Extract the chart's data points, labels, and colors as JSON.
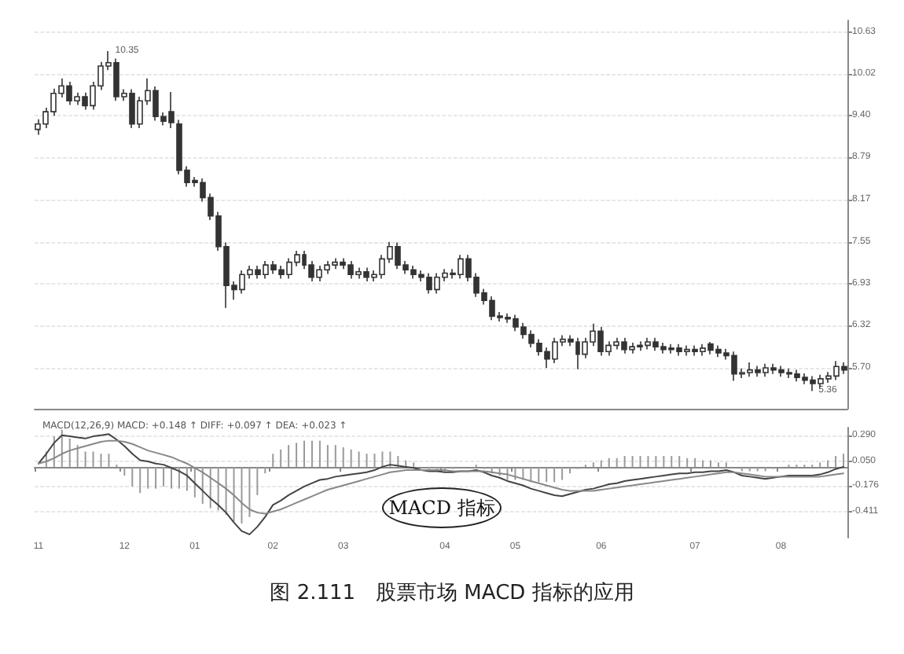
{
  "chart_data": [
    {
      "type": "candlestick",
      "color": "#333333",
      "categories": [
        "11",
        null,
        null,
        null,
        null,
        null,
        null,
        null,
        null,
        null,
        null,
        "12",
        null,
        null,
        null,
        null,
        null,
        null,
        null,
        null,
        "01",
        null,
        null,
        null,
        null,
        null,
        null,
        null,
        null,
        null,
        "02",
        null,
        null,
        null,
        null,
        null,
        null,
        null,
        null,
        "03",
        null,
        null,
        null,
        null,
        null,
        null,
        null,
        null,
        null,
        null,
        null,
        null,
        "04",
        null,
        null,
        null,
        null,
        null,
        null,
        null,
        null,
        "05",
        null,
        null,
        null,
        null,
        null,
        null,
        null,
        null,
        null,
        null,
        "06",
        null,
        null,
        null,
        null,
        null,
        null,
        null,
        null,
        null,
        null,
        null,
        "07",
        null,
        null,
        null,
        null,
        null,
        null,
        null,
        null,
        null,
        null,
        "08",
        null,
        null,
        null,
        null,
        null,
        null,
        null,
        null
      ],
      "ohlc": [
        [
          9.2,
          9.35,
          9.12,
          9.28
        ],
        [
          9.28,
          9.52,
          9.22,
          9.46
        ],
        [
          9.46,
          9.8,
          9.4,
          9.73
        ],
        [
          9.73,
          9.95,
          9.67,
          9.84
        ],
        [
          9.84,
          9.9,
          9.56,
          9.62
        ],
        [
          9.62,
          9.74,
          9.56,
          9.68
        ],
        [
          9.68,
          9.74,
          9.49,
          9.55
        ],
        [
          9.55,
          9.9,
          9.49,
          9.84
        ],
        [
          9.84,
          10.19,
          9.78,
          10.13
        ],
        [
          10.13,
          10.35,
          10.07,
          10.18
        ],
        [
          10.18,
          10.24,
          9.62,
          9.68
        ],
        [
          9.68,
          9.79,
          9.62,
          9.73
        ],
        [
          9.73,
          9.79,
          9.22,
          9.28
        ],
        [
          9.28,
          9.68,
          9.22,
          9.62
        ],
        [
          9.62,
          9.95,
          9.56,
          9.77
        ],
        [
          9.77,
          9.83,
          9.33,
          9.39
        ],
        [
          9.39,
          9.45,
          9.26,
          9.32
        ],
        [
          9.46,
          9.75,
          9.22,
          9.3
        ],
        [
          9.28,
          9.34,
          8.54,
          8.6
        ],
        [
          8.6,
          8.66,
          8.36,
          8.42
        ],
        [
          8.45,
          8.5,
          8.36,
          8.42
        ],
        [
          8.42,
          8.48,
          8.14,
          8.2
        ],
        [
          8.2,
          8.26,
          7.87,
          7.93
        ],
        [
          7.93,
          7.99,
          7.42,
          7.48
        ],
        [
          7.48,
          7.54,
          6.58,
          6.91
        ],
        [
          6.91,
          6.97,
          6.7,
          6.85
        ],
        [
          6.85,
          7.13,
          6.79,
          7.07
        ],
        [
          7.07,
          7.2,
          7.01,
          7.14
        ],
        [
          7.14,
          7.2,
          7.01,
          7.07
        ],
        [
          7.07,
          7.27,
          7.01,
          7.21
        ],
        [
          7.21,
          7.27,
          7.08,
          7.14
        ],
        [
          7.14,
          7.2,
          7.01,
          7.07
        ],
        [
          7.07,
          7.31,
          7.01,
          7.25
        ],
        [
          7.25,
          7.42,
          7.19,
          7.36
        ],
        [
          7.36,
          7.42,
          7.15,
          7.21
        ],
        [
          7.21,
          7.27,
          6.97,
          7.03
        ],
        [
          7.03,
          7.2,
          6.97,
          7.14
        ],
        [
          7.14,
          7.27,
          7.08,
          7.21
        ],
        [
          7.21,
          7.31,
          7.15,
          7.25
        ],
        [
          7.25,
          7.31,
          7.15,
          7.21
        ],
        [
          7.21,
          7.27,
          7.01,
          7.07
        ],
        [
          7.07,
          7.17,
          7.01,
          7.11
        ],
        [
          7.11,
          7.17,
          6.97,
          7.03
        ],
        [
          7.03,
          7.13,
          6.97,
          7.07
        ],
        [
          7.07,
          7.36,
          7.01,
          7.3
        ],
        [
          7.3,
          7.55,
          7.24,
          7.48
        ],
        [
          7.48,
          7.54,
          7.15,
          7.21
        ],
        [
          7.21,
          7.27,
          7.08,
          7.14
        ],
        [
          7.14,
          7.2,
          7.01,
          7.07
        ],
        [
          7.07,
          7.13,
          6.97,
          7.03
        ],
        [
          7.03,
          7.09,
          6.79,
          6.85
        ],
        [
          6.85,
          7.09,
          6.79,
          7.03
        ],
        [
          7.03,
          7.15,
          6.97,
          7.09
        ],
        [
          7.09,
          7.15,
          7.01,
          7.07
        ],
        [
          7.07,
          7.36,
          7.01,
          7.3
        ],
        [
          7.3,
          7.36,
          6.97,
          7.03
        ],
        [
          7.03,
          7.09,
          6.74,
          6.8
        ],
        [
          6.8,
          6.86,
          6.63,
          6.69
        ],
        [
          6.69,
          6.75,
          6.4,
          6.46
        ],
        [
          6.46,
          6.52,
          6.38,
          6.44
        ],
        [
          6.44,
          6.5,
          6.36,
          6.42
        ],
        [
          6.42,
          6.48,
          6.24,
          6.3
        ],
        [
          6.3,
          6.36,
          6.13,
          6.19
        ],
        [
          6.19,
          6.25,
          6.0,
          6.06
        ],
        [
          6.06,
          6.12,
          5.88,
          5.94
        ],
        [
          5.94,
          6.0,
          5.7,
          5.83
        ],
        [
          5.83,
          6.14,
          5.77,
          6.08
        ],
        [
          6.08,
          6.18,
          6.02,
          6.12
        ],
        [
          6.12,
          6.18,
          6.02,
          6.08
        ],
        [
          6.08,
          6.14,
          5.68,
          5.9
        ],
        [
          5.9,
          6.14,
          5.84,
          6.08
        ],
        [
          6.08,
          6.35,
          6.02,
          6.24
        ],
        [
          6.24,
          6.3,
          5.88,
          5.94
        ],
        [
          5.94,
          6.09,
          5.88,
          6.03
        ],
        [
          6.03,
          6.14,
          5.97,
          6.08
        ],
        [
          6.08,
          6.14,
          5.91,
          5.97
        ],
        [
          5.97,
          6.07,
          5.91,
          6.01
        ],
        [
          6.01,
          6.09,
          5.95,
          6.03
        ],
        [
          6.03,
          6.14,
          5.97,
          6.08
        ],
        [
          6.08,
          6.14,
          5.95,
          6.01
        ],
        [
          6.01,
          6.07,
          5.91,
          5.97
        ],
        [
          5.97,
          6.05,
          5.91,
          5.99
        ],
        [
          5.99,
          6.05,
          5.88,
          5.94
        ],
        [
          5.94,
          6.03,
          5.88,
          5.97
        ],
        [
          5.97,
          6.03,
          5.88,
          5.94
        ],
        [
          5.94,
          6.05,
          5.88,
          5.99
        ],
        [
          6.05,
          6.08,
          5.9,
          5.96
        ],
        [
          5.97,
          6.03,
          5.86,
          5.92
        ],
        [
          5.92,
          5.98,
          5.82,
          5.88
        ],
        [
          5.88,
          5.94,
          5.51,
          5.61
        ],
        [
          5.61,
          5.69,
          5.55,
          5.63
        ],
        [
          5.63,
          5.78,
          5.57,
          5.67
        ],
        [
          5.67,
          5.73,
          5.57,
          5.63
        ],
        [
          5.63,
          5.76,
          5.57,
          5.7
        ],
        [
          5.7,
          5.76,
          5.61,
          5.67
        ],
        [
          5.67,
          5.73,
          5.57,
          5.63
        ],
        [
          5.63,
          5.69,
          5.55,
          5.61
        ],
        [
          5.61,
          5.67,
          5.5,
          5.56
        ],
        [
          5.56,
          5.62,
          5.46,
          5.52
        ],
        [
          5.52,
          5.58,
          5.36,
          5.47
        ],
        [
          5.47,
          5.6,
          5.41,
          5.54
        ],
        [
          5.54,
          5.64,
          5.48,
          5.58
        ],
        [
          5.58,
          5.8,
          5.52,
          5.72
        ],
        [
          5.72,
          5.78,
          5.61,
          5.67
        ]
      ],
      "ylim": [
        5.1,
        10.8
      ],
      "yticks": [
        {
          "value": 5.7,
          "label": "5.70"
        },
        6.32,
        6.93,
        7.55,
        8.17,
        8.79,
        {
          "value": 9.4,
          "label": "9.40"
        },
        10.02,
        10.63
      ],
      "grid": "y",
      "tick_labels": "y",
      "annotations": [
        "10.35",
        "5.36"
      ]
    },
    {
      "type": "line",
      "title": "MACD(12,26,9) MACD: +0.148 ↑ DIFF: +0.097 ↑ DEA: +0.023 ↑",
      "categories": [
        "11",
        null,
        null,
        null,
        null,
        null,
        null,
        null,
        null,
        null,
        null,
        "12",
        null,
        null,
        null,
        null,
        null,
        null,
        null,
        null,
        "01",
        null,
        null,
        null,
        null,
        null,
        null,
        null,
        null,
        null,
        "02",
        null,
        null,
        null,
        null,
        null,
        null,
        null,
        null,
        "03",
        null,
        null,
        null,
        null,
        null,
        null,
        null,
        null,
        null,
        null,
        null,
        null,
        "04",
        null,
        null,
        null,
        null,
        null,
        null,
        null,
        null,
        "05",
        null,
        null,
        null,
        null,
        null,
        null,
        null,
        null,
        null,
        null,
        "06",
        null,
        null,
        null,
        null,
        null,
        null,
        null,
        null,
        null,
        null,
        null,
        "07",
        null,
        null,
        null,
        null,
        null,
        null,
        null,
        null,
        null,
        null,
        "08",
        null,
        null,
        null,
        null,
        null,
        null,
        null,
        null
      ],
      "series": [
        {
          "type": "bar",
          "color": "#9a9a9a",
          "values": [
            0,
            0.14,
            0.28,
            0.34,
            0.26,
            0.2,
            0.14,
            0.14,
            0.12,
            0.12,
            0.02,
            -0.08,
            -0.18,
            -0.24,
            -0.2,
            -0.2,
            -0.18,
            -0.2,
            -0.2,
            -0.22,
            -0.28,
            -0.34,
            -0.38,
            -0.4,
            -0.44,
            -0.5,
            -0.52,
            -0.46,
            -0.26,
            -0.06,
            0.12,
            0.16,
            0.2,
            0.22,
            0.24,
            0.24,
            0.24,
            0.2,
            0.2,
            0.18,
            0.16,
            0.14,
            0.12,
            0.12,
            0.14,
            0.14,
            0.1,
            0.06,
            0.04,
            0,
            -0.02,
            -0.02,
            -0.04,
            -0.02,
            0,
            0,
            0.02,
            -0.02,
            -0.06,
            -0.08,
            -0.12,
            -0.12,
            -0.12,
            -0.14,
            -0.14,
            -0.14,
            -0.14,
            -0.12,
            -0.06,
            -0.02,
            0.02,
            0.04,
            0.06,
            0.08,
            0.08,
            0.1,
            0.1,
            0.1,
            0.1,
            0.1,
            0.1,
            0.1,
            0.1,
            0.08,
            0.08,
            0.06,
            0.06,
            0.04,
            0.04,
            0,
            -0.04,
            -0.04,
            -0.04,
            -0.04,
            -0.02,
            0,
            0.02,
            0.02,
            0.02,
            0.02,
            0.04,
            0.06,
            0.1,
            0.12
          ]
        },
        {
          "type": "line",
          "color": "#444444",
          "values": [
            0.03,
            0.12,
            0.22,
            0.29,
            0.28,
            0.27,
            0.26,
            0.28,
            0.29,
            0.3,
            0.25,
            0.19,
            0.12,
            0.06,
            0.05,
            0.03,
            0.02,
            -0.01,
            -0.04,
            -0.08,
            -0.15,
            -0.22,
            -0.29,
            -0.35,
            -0.42,
            -0.51,
            -0.59,
            -0.62,
            -0.55,
            -0.46,
            -0.35,
            -0.31,
            -0.26,
            -0.22,
            -0.18,
            -0.15,
            -0.12,
            -0.11,
            -0.09,
            -0.08,
            -0.07,
            -0.06,
            -0.05,
            -0.03,
            0,
            0.02,
            0.01,
            0,
            -0.01,
            -0.03,
            -0.04,
            -0.04,
            -0.05,
            -0.05,
            -0.04,
            -0.04,
            -0.03,
            -0.05,
            -0.08,
            -0.1,
            -0.13,
            -0.15,
            -0.17,
            -0.2,
            -0.22,
            -0.24,
            -0.26,
            -0.27,
            -0.25,
            -0.23,
            -0.21,
            -0.2,
            -0.18,
            -0.16,
            -0.15,
            -0.13,
            -0.12,
            -0.11,
            -0.1,
            -0.09,
            -0.08,
            -0.07,
            -0.06,
            -0.06,
            -0.05,
            -0.05,
            -0.04,
            -0.04,
            -0.03,
            -0.05,
            -0.08,
            -0.09,
            -0.1,
            -0.11,
            -0.1,
            -0.09,
            -0.08,
            -0.08,
            -0.08,
            -0.08,
            -0.07,
            -0.05,
            -0.02,
            0
          ]
        },
        {
          "type": "line",
          "color": "#888888",
          "values": [
            0.03,
            0.05,
            0.08,
            0.12,
            0.15,
            0.17,
            0.19,
            0.21,
            0.23,
            0.24,
            0.24,
            0.23,
            0.21,
            0.18,
            0.15,
            0.13,
            0.11,
            0.09,
            0.06,
            0.03,
            -0.01,
            -0.05,
            -0.1,
            -0.15,
            -0.2,
            -0.26,
            -0.33,
            -0.39,
            -0.42,
            -0.43,
            -0.41,
            -0.39,
            -0.36,
            -0.33,
            -0.3,
            -0.27,
            -0.24,
            -0.21,
            -0.19,
            -0.17,
            -0.15,
            -0.13,
            -0.11,
            -0.09,
            -0.07,
            -0.05,
            -0.04,
            -0.03,
            -0.03,
            -0.03,
            -0.03,
            -0.03,
            -0.03,
            -0.04,
            -0.04,
            -0.04,
            -0.04,
            -0.04,
            -0.05,
            -0.06,
            -0.07,
            -0.09,
            -0.11,
            -0.13,
            -0.15,
            -0.17,
            -0.19,
            -0.21,
            -0.22,
            -0.22,
            -0.22,
            -0.22,
            -0.21,
            -0.2,
            -0.19,
            -0.18,
            -0.17,
            -0.16,
            -0.15,
            -0.14,
            -0.13,
            -0.12,
            -0.11,
            -0.1,
            -0.09,
            -0.08,
            -0.07,
            -0.06,
            -0.05,
            -0.05,
            -0.06,
            -0.07,
            -0.08,
            -0.09,
            -0.09,
            -0.09,
            -0.09,
            -0.09,
            -0.09,
            -0.09,
            -0.09,
            -0.08,
            -0.07,
            -0.06
          ]
        }
      ],
      "ylim": [
        -0.65,
        0.36
      ],
      "yticks": [
        {
          "value": -0.411,
          "label": "-0.411"
        },
        {
          "value": -0.176,
          "label": "-0.176"
        },
        {
          "value": 0.05,
          "label": "0.050"
        },
        {
          "value": 0.29,
          "label": "0.290"
        }
      ],
      "grid": "y",
      "marker": "none",
      "line_style": "solid",
      "annotations": [
        "MACD 指标",
        "图 2.111　股票市场 MACD 指标的应用"
      ]
    }
  ]
}
